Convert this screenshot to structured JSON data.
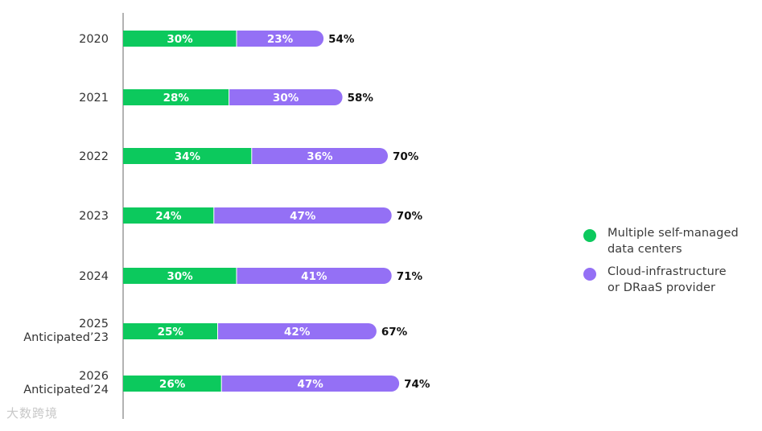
{
  "chart_data": {
    "type": "bar",
    "stacked": true,
    "orientation": "horizontal",
    "categories": [
      [
        "2020"
      ],
      [
        "2021"
      ],
      [
        "2022"
      ],
      [
        "2023"
      ],
      [
        "2024"
      ],
      [
        "2025",
        "Anticipated’23"
      ],
      [
        "2026",
        "Anticipated’24"
      ]
    ],
    "series": [
      {
        "name": "Multiple self-managed data centers",
        "values": [
          30,
          28,
          34,
          24,
          30,
          25,
          26
        ],
        "labels": [
          "30%",
          "28%",
          "34%",
          "24%",
          "30%",
          "25%",
          "26%"
        ]
      },
      {
        "name": "Cloud-infrastructure or DRaaS provider",
        "values": [
          23,
          30,
          36,
          47,
          41,
          42,
          47
        ],
        "labels": [
          "23%",
          "30%",
          "36%",
          "47%",
          "41%",
          "42%",
          "47%"
        ]
      }
    ],
    "totals": [
      54,
      58,
      70,
      70,
      71,
      67,
      74
    ],
    "total_labels": [
      "54%",
      "58%",
      "70%",
      "70%",
      "71%",
      "67%",
      "74%"
    ],
    "colors": [
      "#0cc95d",
      "#9470f5"
    ],
    "legend_position": "right",
    "grid": false
  },
  "legend": {
    "items": [
      {
        "lines": [
          "Multiple self-managed",
          "data centers"
        ],
        "color": "#0cc95d"
      },
      {
        "lines": [
          "Cloud-infrastructure",
          "or DRaaS provider"
        ],
        "color": "#9470f5"
      }
    ]
  },
  "watermark": {
    "text": "大数跨境"
  }
}
